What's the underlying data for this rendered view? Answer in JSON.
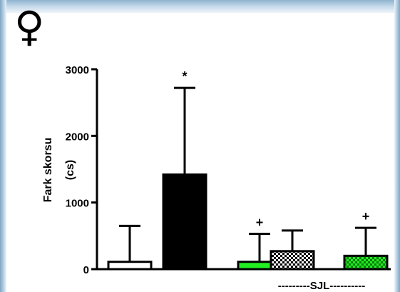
{
  "header": {
    "symbol": "♀"
  },
  "chart_data": {
    "type": "bar",
    "title": "",
    "xlabel": "",
    "ylabel_line1": "Fark skorsu",
    "ylabel_line2": "(cs)",
    "ylim": [
      0,
      3000
    ],
    "yticks": [
      0,
      1000,
      2000,
      3000
    ],
    "ytick_labels": [
      "0",
      "1000",
      "2000",
      "3000"
    ],
    "group_label": "---------SJL----------",
    "grid": false,
    "legend": "none",
    "bars": [
      {
        "value": 110,
        "error": 540,
        "fill": "white",
        "annotation": ""
      },
      {
        "value": 1420,
        "error": 1300,
        "fill": "black",
        "annotation": "*"
      },
      {
        "value": 110,
        "error": 420,
        "fill": "green",
        "annotation": "+"
      },
      {
        "value": 270,
        "error": 310,
        "fill": "checker",
        "annotation": ""
      },
      {
        "value": 200,
        "error": 420,
        "fill": "green-checker",
        "annotation": "+"
      }
    ],
    "colors": {
      "green": "#22ee22",
      "dark_green": "#0b7a0b",
      "black": "#000000",
      "white": "#ffffff",
      "checker": "#000000"
    }
  }
}
